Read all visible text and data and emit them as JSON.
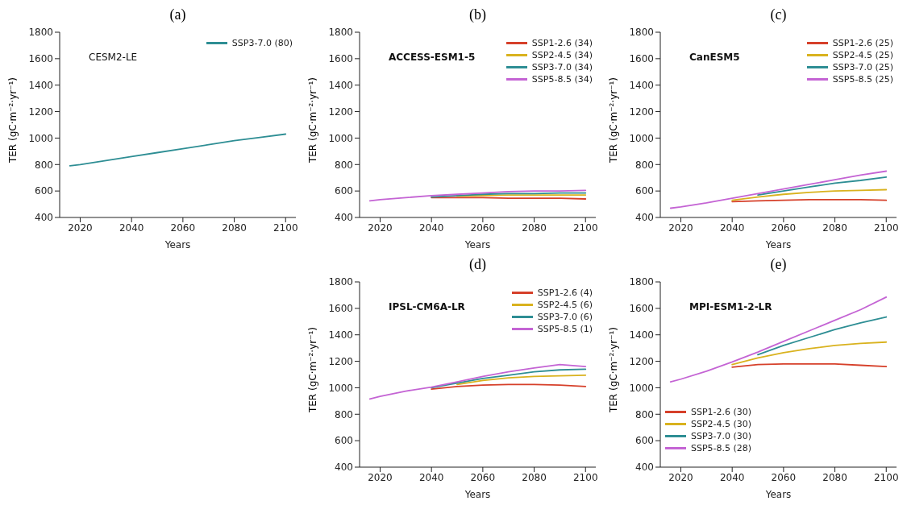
{
  "chart_data": [
    {
      "type": "line",
      "title": "(a)",
      "annotations": [
        "CESM2-LE"
      ],
      "xlabel": "Years",
      "ylabel": "TER (gC·m⁻²·yr⁻¹)",
      "xlim": [
        2012,
        2104
      ],
      "xticks": [
        2020,
        2040,
        2060,
        2080,
        2100
      ],
      "ylim": [
        400,
        1800
      ],
      "yticks": [
        400,
        600,
        800,
        1000,
        1200,
        1400,
        1600,
        1800
      ],
      "legend": "top right",
      "marker": "none",
      "line_style": "solid",
      "x": [
        2016,
        2020,
        2030,
        2040,
        2050,
        2060,
        2070,
        2080,
        2090,
        2100
      ],
      "series": [
        {
          "name": "SSP3-7.0 (80)",
          "color": "#2e8e94",
          "values": [
            790,
            800,
            830,
            860,
            890,
            920,
            950,
            980,
            1005,
            1030
          ]
        }
      ]
    },
    {
      "type": "line",
      "title": "(b)",
      "annotations": [
        "ACCESS-ESM1-5"
      ],
      "xlabel": "Years",
      "ylabel": "TER (gC·m⁻²·yr⁻¹)",
      "xlim": [
        2012,
        2104
      ],
      "xticks": [
        2020,
        2040,
        2060,
        2080,
        2100
      ],
      "ylim": [
        400,
        1800
      ],
      "yticks": [
        400,
        600,
        800,
        1000,
        1200,
        1400,
        1600,
        1800
      ],
      "legend": "top right",
      "marker": "none",
      "line_style": "solid",
      "x": [
        2016,
        2020,
        2030,
        2040,
        2050,
        2060,
        2070,
        2080,
        2090,
        2100
      ],
      "series": [
        {
          "name": "SSP1-2.6 (34)",
          "color": "#d6402a",
          "values": [
            null,
            null,
            null,
            550,
            550,
            550,
            545,
            545,
            545,
            540
          ]
        },
        {
          "name": "SSP2-4.5 (34)",
          "color": "#d9b21e",
          "values": [
            null,
            null,
            null,
            null,
            560,
            565,
            570,
            570,
            570,
            570
          ]
        },
        {
          "name": "SSP3-7.0 (34)",
          "color": "#2e8e94",
          "values": [
            null,
            null,
            null,
            555,
            565,
            575,
            580,
            580,
            585,
            585
          ]
        },
        {
          "name": "SSP5-8.5 (34)",
          "color": "#c464d4",
          "values": [
            525,
            535,
            550,
            565,
            575,
            585,
            595,
            600,
            600,
            605
          ]
        }
      ]
    },
    {
      "type": "line",
      "title": "(c)",
      "annotations": [
        "CanESM5"
      ],
      "xlabel": "Years",
      "ylabel": "TER (gC·m⁻²·yr⁻¹)",
      "xlim": [
        2012,
        2104
      ],
      "xticks": [
        2020,
        2040,
        2060,
        2080,
        2100
      ],
      "ylim": [
        400,
        1800
      ],
      "yticks": [
        400,
        600,
        800,
        1000,
        1200,
        1400,
        1600,
        1800
      ],
      "legend": "top right",
      "marker": "none",
      "line_style": "solid",
      "x": [
        2016,
        2020,
        2030,
        2040,
        2050,
        2060,
        2070,
        2080,
        2090,
        2100
      ],
      "series": [
        {
          "name": "SSP1-2.6 (25)",
          "color": "#d6402a",
          "values": [
            null,
            null,
            null,
            520,
            525,
            530,
            535,
            535,
            535,
            530
          ]
        },
        {
          "name": "SSP2-4.5 (25)",
          "color": "#d9b21e",
          "values": [
            null,
            null,
            null,
            530,
            555,
            575,
            590,
            600,
            605,
            610
          ]
        },
        {
          "name": "SSP3-7.0 (25)",
          "color": "#2e8e94",
          "values": [
            null,
            null,
            null,
            null,
            570,
            600,
            630,
            660,
            680,
            705
          ]
        },
        {
          "name": "SSP5-8.5 (25)",
          "color": "#c464d4",
          "values": [
            470,
            480,
            510,
            545,
            580,
            615,
            650,
            685,
            720,
            750
          ]
        }
      ]
    },
    {
      "type": "line",
      "title": "(d)",
      "annotations": [
        "IPSL-CM6A-LR"
      ],
      "xlabel": "Years",
      "ylabel": "TER (gC·m⁻²·yr⁻¹)",
      "xlim": [
        2012,
        2104
      ],
      "xticks": [
        2020,
        2040,
        2060,
        2080,
        2100
      ],
      "ylim": [
        400,
        1800
      ],
      "yticks": [
        400,
        600,
        800,
        1000,
        1200,
        1400,
        1600,
        1800
      ],
      "legend": "top right",
      "marker": "none",
      "line_style": "solid",
      "x": [
        2016,
        2020,
        2030,
        2040,
        2050,
        2060,
        2070,
        2080,
        2090,
        2100
      ],
      "series": [
        {
          "name": "SSP1-2.6 (4)",
          "color": "#d6402a",
          "values": [
            null,
            null,
            null,
            990,
            1010,
            1020,
            1025,
            1025,
            1020,
            1010
          ]
        },
        {
          "name": "SSP2-4.5 (6)",
          "color": "#d9b21e",
          "values": [
            null,
            null,
            null,
            null,
            1025,
            1055,
            1075,
            1085,
            1090,
            1095
          ]
        },
        {
          "name": "SSP3-7.0 (6)",
          "color": "#2e8e94",
          "values": [
            null,
            null,
            null,
            1000,
            1035,
            1070,
            1095,
            1120,
            1135,
            1140
          ]
        },
        {
          "name": "SSP5-8.5 (1)",
          "color": "#c464d4",
          "values": [
            915,
            935,
            975,
            1005,
            1045,
            1085,
            1120,
            1150,
            1175,
            1160
          ]
        }
      ]
    },
    {
      "type": "line",
      "title": "(e)",
      "annotations": [
        "MPI-ESM1-2-LR"
      ],
      "xlabel": "Years",
      "ylabel": "TER (gC·m⁻²·yr⁻¹)",
      "xlim": [
        2012,
        2104
      ],
      "xticks": [
        2020,
        2040,
        2060,
        2080,
        2100
      ],
      "ylim": [
        400,
        1800
      ],
      "yticks": [
        400,
        600,
        800,
        1000,
        1200,
        1400,
        1600,
        1800
      ],
      "legend": "bottom left",
      "marker": "none",
      "line_style": "solid",
      "x": [
        2016,
        2020,
        2030,
        2040,
        2050,
        2060,
        2070,
        2080,
        2090,
        2100
      ],
      "series": [
        {
          "name": "SSP1-2.6 (30)",
          "color": "#d6402a",
          "values": [
            null,
            null,
            null,
            1155,
            1175,
            1180,
            1180,
            1180,
            1170,
            1160
          ]
        },
        {
          "name": "SSP2-4.5 (30)",
          "color": "#d9b21e",
          "values": [
            null,
            null,
            null,
            1175,
            1225,
            1265,
            1295,
            1320,
            1335,
            1345
          ]
        },
        {
          "name": "SSP3-7.0 (30)",
          "color": "#2e8e94",
          "values": [
            null,
            null,
            null,
            null,
            1250,
            1320,
            1380,
            1440,
            1490,
            1535
          ]
        },
        {
          "name": "SSP5-8.5 (28)",
          "color": "#c464d4",
          "values": [
            1045,
            1065,
            1125,
            1195,
            1270,
            1350,
            1430,
            1510,
            1590,
            1685
          ]
        }
      ]
    }
  ]
}
